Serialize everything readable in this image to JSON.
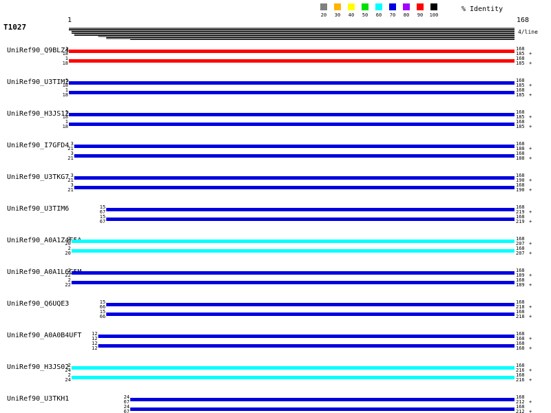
{
  "query": {
    "name": "T1027",
    "start": "1",
    "end": "168",
    "depth_label": "4/line"
  },
  "legend": {
    "title": "% Identity",
    "items": [
      {
        "label": "20",
        "color": "#808080"
      },
      {
        "label": "30",
        "color": "#ffb400"
      },
      {
        "label": "40",
        "color": "#ffff00"
      },
      {
        "label": "50",
        "color": "#00e000"
      },
      {
        "label": "60",
        "color": "#00ffff"
      },
      {
        "label": "70",
        "color": "#0000e0"
      },
      {
        "label": "80",
        "color": "#a000ff"
      },
      {
        "label": "90",
        "color": "#ff0000"
      },
      {
        "label": "100",
        "color": "#000000"
      }
    ]
  },
  "chart_data": {
    "type": "alignment",
    "query_length": 168,
    "hits": [
      {
        "name": "UniRef90_Q9BLZ4",
        "identity": 90,
        "color": "#ff0000",
        "tracks": [
          {
            "qstart": 1,
            "sstart": 18,
            "qend": 168,
            "send": 185
          },
          {
            "qstart": 1,
            "sstart": 18,
            "qend": 168,
            "send": 185
          }
        ]
      },
      {
        "name": "UniRef90_U3TIM2",
        "identity": 70,
        "color": "#0000e0",
        "tracks": [
          {
            "qstart": 1,
            "sstart": 18,
            "qend": 168,
            "send": 185
          },
          {
            "qstart": 1,
            "sstart": 18,
            "qend": 168,
            "send": 185
          }
        ]
      },
      {
        "name": "UniRef90_H3JS12",
        "identity": 70,
        "color": "#0000e0",
        "tracks": [
          {
            "qstart": 1,
            "sstart": 18,
            "qend": 168,
            "send": 185
          },
          {
            "qstart": 1,
            "sstart": 18,
            "qend": 168,
            "send": 185
          }
        ]
      },
      {
        "name": "UniRef90_I7GFD4",
        "identity": 70,
        "color": "#0000e0",
        "tracks": [
          {
            "qstart": 3,
            "sstart": 21,
            "qend": 168,
            "send": 188
          },
          {
            "qstart": 3,
            "sstart": 21,
            "qend": 168,
            "send": 188
          }
        ]
      },
      {
        "name": "UniRef90_U3TKG7",
        "identity": 70,
        "color": "#0000e0",
        "tracks": [
          {
            "qstart": 3,
            "sstart": 21,
            "qend": 168,
            "send": 190
          },
          {
            "qstart": 3,
            "sstart": 21,
            "qend": 168,
            "send": 190
          }
        ]
      },
      {
        "name": "UniRef90_U3TIM6",
        "identity": 70,
        "color": "#0000e0",
        "tracks": [
          {
            "qstart": 15,
            "sstart": 67,
            "qend": 168,
            "send": 219
          },
          {
            "qstart": 15,
            "sstart": 67,
            "qend": 168,
            "send": 219
          }
        ]
      },
      {
        "name": "UniRef90_A0A1Z4F5A",
        "identity": 60,
        "color": "#00ffff",
        "tracks": [
          {
            "qstart": 2,
            "sstart": 20,
            "qend": 168,
            "send": 207
          },
          {
            "qstart": 2,
            "sstart": 20,
            "qend": 168,
            "send": 207
          }
        ]
      },
      {
        "name": "UniRef90_A0A1L6C5M",
        "identity": 70,
        "color": "#0000e0",
        "tracks": [
          {
            "qstart": 2,
            "sstart": 22,
            "qend": 168,
            "send": 189
          },
          {
            "qstart": 2,
            "sstart": 22,
            "qend": 168,
            "send": 189
          }
        ]
      },
      {
        "name": "UniRef90_Q6UQE3",
        "identity": 70,
        "color": "#0000e0",
        "tracks": [
          {
            "qstart": 15,
            "sstart": 66,
            "qend": 168,
            "send": 218
          },
          {
            "qstart": 15,
            "sstart": 66,
            "qend": 168,
            "send": 218
          }
        ]
      },
      {
        "name": "UniRef90_A0A0B4UFT",
        "identity": 70,
        "color": "#0000e0",
        "tracks": [
          {
            "qstart": 12,
            "sstart": 12,
            "qend": 168,
            "send": 168
          },
          {
            "qstart": 12,
            "sstart": 12,
            "qend": 168,
            "send": 168
          }
        ]
      },
      {
        "name": "UniRef90_H3JS02",
        "identity": 60,
        "color": "#00ffff",
        "tracks": [
          {
            "qstart": 2,
            "sstart": 24,
            "qend": 168,
            "send": 216
          },
          {
            "qstart": 2,
            "sstart": 24,
            "qend": 168,
            "send": 216
          }
        ]
      },
      {
        "name": "UniRef90_U3TKH1",
        "identity": 70,
        "color": "#0000e0",
        "tracks": [
          {
            "qstart": 24,
            "sstart": 67,
            "qend": 168,
            "send": 212
          },
          {
            "qstart": 24,
            "sstart": 67,
            "qend": 168,
            "send": 212
          }
        ]
      }
    ]
  }
}
